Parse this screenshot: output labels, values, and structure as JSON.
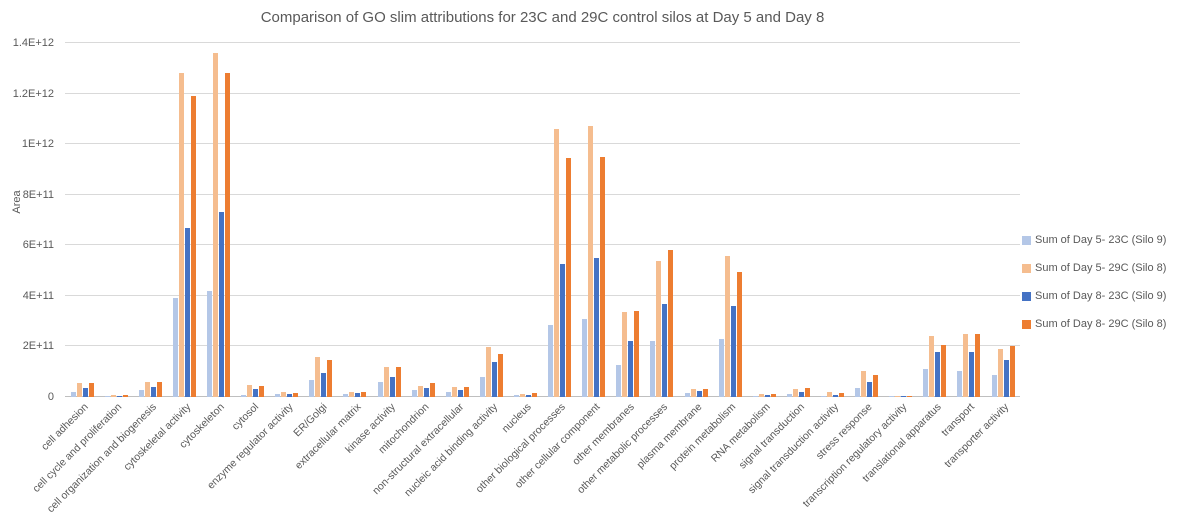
{
  "chart_data": {
    "type": "bar",
    "title": "Comparison of GO slim attributions for 23C and 29C control silos at Day 5 and Day 8",
    "xlabel": "",
    "ylabel": "Area",
    "ylim": [
      0,
      1400000000000.0
    ],
    "grid": true,
    "legend_position": "right",
    "y_ticks": [
      {
        "value": 0,
        "label": "0"
      },
      {
        "value": 200000000000.0,
        "label": "2E+11"
      },
      {
        "value": 400000000000.0,
        "label": "4E+11"
      },
      {
        "value": 600000000000.0,
        "label": "6E+11"
      },
      {
        "value": 800000000000.0,
        "label": "8E+11"
      },
      {
        "value": 1000000000000.0,
        "label": "1E+12"
      },
      {
        "value": 1200000000000.0,
        "label": "1.2E+12"
      },
      {
        "value": 1400000000000.0,
        "label": "1.4E+12"
      }
    ],
    "categories": [
      "cell adhesion",
      "cell cycle and proliferation",
      "cell organization and biogenesis",
      "cytoskeletal activity",
      "cytoskeleton",
      "cytosol",
      "enzyme regulator activity",
      "ER/Golgi",
      "extracellular matrix",
      "kinase activity",
      "mitochondrion",
      "non-structural extracellular",
      "nucleic acid binding activity",
      "nucleus",
      "other biological processes",
      "other cellular component",
      "other membranes",
      "other metabolic processes",
      "plasma membrane",
      "protein metabolism",
      "RNA metabolism",
      "signal transduction",
      "signal transduction activity",
      "stress response",
      "transcription regulatory activity",
      "translational apparatus",
      "transport",
      "transporter activity"
    ],
    "series": [
      {
        "name": "Sum of Day 5- 23C (Silo 9)",
        "color": "#b4c7e7",
        "values": [
          21000000000.0,
          4000000000.0,
          26000000000.0,
          390000000000.0,
          420000000000.0,
          8000000000.0,
          12000000000.0,
          66000000000.0,
          13000000000.0,
          59000000000.0,
          27000000000.0,
          20000000000.0,
          80000000000.0,
          7000000000.0,
          286000000000.0,
          310000000000.0,
          128000000000.0,
          220000000000.0,
          16000000000.0,
          229000000000.0,
          4000000000.0,
          13000000000.0,
          3000000000.0,
          36000000000.0,
          2000000000.0,
          111000000000.0,
          101000000000.0,
          88000000000.0
        ]
      },
      {
        "name": "Sum of Day 5- 29C (Silo 8)",
        "color": "#f5bd8f",
        "values": [
          54000000000.0,
          6000000000.0,
          60000000000.0,
          1280000000000.0,
          1360000000000.0,
          47000000000.0,
          19000000000.0,
          160000000000.0,
          21000000000.0,
          120000000000.0,
          43000000000.0,
          40000000000.0,
          198000000000.0,
          13000000000.0,
          1060000000000.0,
          1070000000000.0,
          335000000000.0,
          536000000000.0,
          33000000000.0,
          559000000000.0,
          11000000000.0,
          33000000000.0,
          20000000000.0,
          103000000000.0,
          5000000000.0,
          240000000000.0,
          250000000000.0,
          190000000000.0
        ]
      },
      {
        "name": "Sum of Day 8- 23C (Silo 9)",
        "color": "#4472c4",
        "values": [
          37000000000.0,
          5000000000.0,
          40000000000.0,
          670000000000.0,
          730000000000.0,
          30000000000.0,
          10000000000.0,
          94000000000.0,
          17000000000.0,
          79000000000.0,
          37000000000.0,
          27000000000.0,
          137000000000.0,
          8000000000.0,
          527000000000.0,
          550000000000.0,
          223000000000.0,
          369000000000.0,
          24000000000.0,
          361000000000.0,
          7000000000.0,
          20000000000.0,
          8000000000.0,
          59000000000.0,
          4000000000.0,
          180000000000.0,
          180000000000.0,
          147000000000.0
        ]
      },
      {
        "name": "Sum of Day 8- 29C (Silo 8)",
        "color": "#ed7d31",
        "values": [
          54000000000.0,
          6000000000.0,
          58000000000.0,
          1190000000000.0,
          1280000000000.0,
          45000000000.0,
          16000000000.0,
          147000000000.0,
          21000000000.0,
          120000000000.0,
          56000000000.0,
          40000000000.0,
          171000000000.0,
          16000000000.0,
          945000000000.0,
          950000000000.0,
          340000000000.0,
          582000000000.0,
          33000000000.0,
          493000000000.0,
          13000000000.0,
          37000000000.0,
          16000000000.0,
          89000000000.0,
          5000000000.0,
          207000000000.0,
          250000000000.0,
          200000000000.0
        ]
      }
    ],
    "colors": {
      "gridline": "#d9d9d9",
      "axis_line": "#bfbfbf",
      "text": "#595959",
      "background": "#ffffff"
    }
  }
}
